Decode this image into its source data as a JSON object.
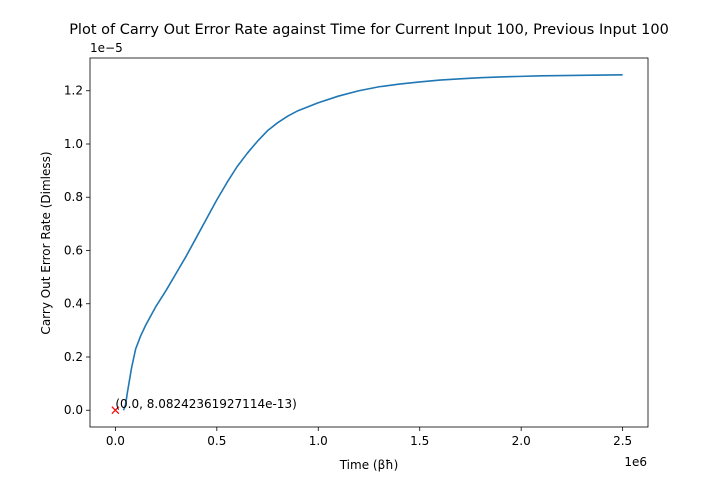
{
  "chart_data": {
    "type": "line",
    "title": "Plot of Carry Out Error Rate against Time for Current Input 100, Previous Input 100",
    "xlabel": "Time (βħ)",
    "ylabel": "Carry Out Error Rate (Dimless)",
    "x_offset_label": "1e6",
    "y_offset_label": "1e−5",
    "xlim": [
      -0.125,
      2.625
    ],
    "ylim": [
      -0.063,
      1.323
    ],
    "xticks": [
      {
        "value": 0.0,
        "label": "0.0"
      },
      {
        "value": 0.5,
        "label": "0.5"
      },
      {
        "value": 1.0,
        "label": "1.0"
      },
      {
        "value": 1.5,
        "label": "1.5"
      },
      {
        "value": 2.0,
        "label": "2.0"
      },
      {
        "value": 2.5,
        "label": "2.5"
      }
    ],
    "yticks": [
      {
        "value": 0.0,
        "label": "0.0"
      },
      {
        "value": 0.2,
        "label": "0.2"
      },
      {
        "value": 0.4,
        "label": "0.4"
      },
      {
        "value": 0.6,
        "label": "0.6"
      },
      {
        "value": 0.8,
        "label": "0.8"
      },
      {
        "value": 1.0,
        "label": "1.0"
      },
      {
        "value": 1.2,
        "label": "1.2"
      }
    ],
    "grid": false,
    "series": [
      {
        "color": "#1f77b4",
        "x": [
          0.04,
          0.05,
          0.06,
          0.08,
          0.1,
          0.125,
          0.15,
          0.2,
          0.25,
          0.3,
          0.35,
          0.4,
          0.45,
          0.5,
          0.55,
          0.6,
          0.65,
          0.7,
          0.75,
          0.8,
          0.85,
          0.9,
          0.95,
          1.0,
          1.1,
          1.2,
          1.3,
          1.4,
          1.5,
          1.6,
          1.7,
          1.8,
          1.9,
          2.0,
          2.1,
          2.2,
          2.3,
          2.4,
          2.5
        ],
        "y": [
          0.0,
          0.02,
          0.07,
          0.16,
          0.23,
          0.28,
          0.32,
          0.39,
          0.45,
          0.515,
          0.58,
          0.65,
          0.72,
          0.79,
          0.855,
          0.915,
          0.965,
          1.01,
          1.05,
          1.08,
          1.105,
          1.125,
          1.14,
          1.155,
          1.18,
          1.2,
          1.215,
          1.225,
          1.233,
          1.24,
          1.245,
          1.249,
          1.252,
          1.254,
          1.256,
          1.257,
          1.258,
          1.259,
          1.26
        ]
      }
    ],
    "marker": {
      "x": 0.0,
      "y": 0.0,
      "symbol": "x",
      "color": "#ff0000",
      "annotation": "(0.0, 8.08242361927114e-13)"
    }
  }
}
